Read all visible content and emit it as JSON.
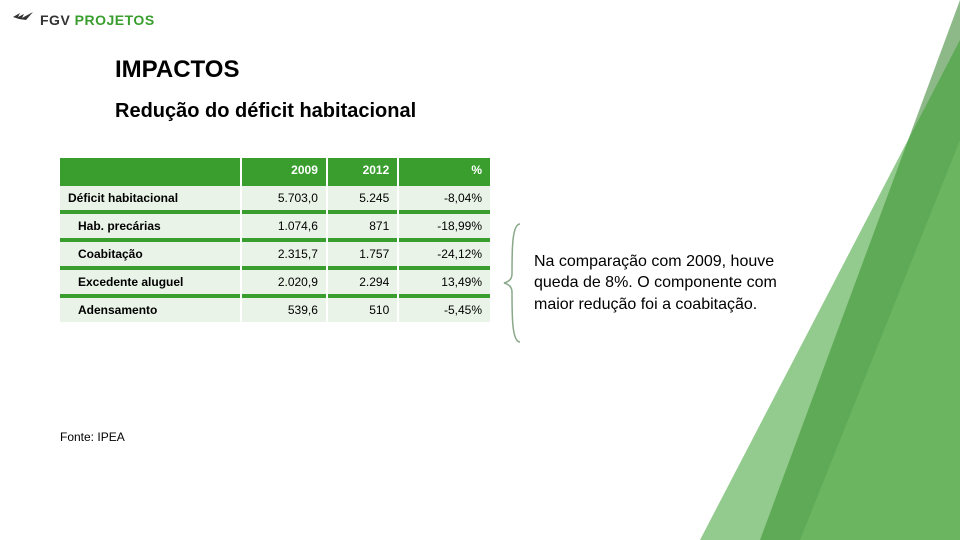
{
  "logo": {
    "prefix": "FGV",
    "suffix": "PROJETOS"
  },
  "heading": {
    "title": "IMPACTOS",
    "subtitle": "Redução do déficit habitacional"
  },
  "table": {
    "columns": [
      "",
      "2009",
      "2012",
      "%"
    ],
    "rows": [
      {
        "label": "Déficit habitacional",
        "c2009": "5.703,0",
        "c2012": "5.245",
        "pct": "-8,04%",
        "indent": false
      },
      {
        "label": "Hab. precárias",
        "c2009": "1.074,6",
        "c2012": "871",
        "pct": "-18,99%",
        "indent": true
      },
      {
        "label": "Coabitação",
        "c2009": "2.315,7",
        "c2012": "1.757",
        "pct": "-24,12%",
        "indent": true
      },
      {
        "label": "Excedente aluguel",
        "c2009": "2.020,9",
        "c2012": "2.294",
        "pct": "13,49%",
        "indent": true
      },
      {
        "label": "Adensamento",
        "c2009": "539,6",
        "c2012": "510",
        "pct": "-5,45%",
        "indent": true
      }
    ]
  },
  "callout": {
    "text": "Na comparação com 2009, houve queda de 8%. O componente com maior redução foi a coabitação."
  },
  "source": {
    "text": "Fonte: IPEA"
  },
  "colors": {
    "brand_green": "#3a9e2f",
    "row_bg": "#e9f3e7",
    "deco_green_dark": "#2f7f27",
    "deco_green_mid": "#3a9e2f",
    "deco_green_light": "#78c06a",
    "brace": "#8aa88a"
  }
}
